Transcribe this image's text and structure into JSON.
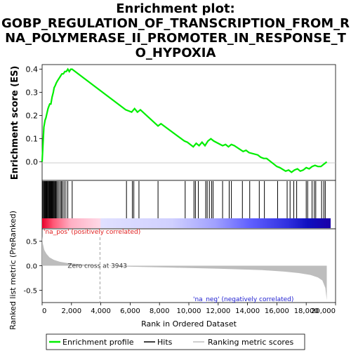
{
  "title_lines": [
    "Enrichment plot:",
    "GOBP_REGULATION_OF_TRANSCRIPTION_FROM_R",
    "NA_POLYMERASE_II_PROMOTER_IN_RESPONSE_T",
    "O_HYPOXIA"
  ],
  "colors": {
    "enrichment_line": "#00ee00",
    "hits": "#000000",
    "metric_fill": "#bdbdbd",
    "pos_label": "#e02020",
    "neg_label": "#2020d0",
    "zero_cross_line": "#a0a0a0"
  },
  "chart_data": {
    "type": "line",
    "xlabel": "Rank in Ordered Dataset",
    "xlim": [
      0,
      20000
    ],
    "x_ticks": [
      0,
      2000,
      4000,
      6000,
      8000,
      10000,
      12000,
      14000,
      16000,
      18000,
      20000
    ],
    "x_tick_labels": [
      "0",
      "2,000",
      "4,000",
      "6,000",
      "8,000",
      "10,000",
      "12,000",
      "14,000",
      "16,000",
      "18,000",
      "20,000"
    ],
    "dataset_size": 19400,
    "es_panel": {
      "ylabel": "Enrichment score (ES)",
      "ylim": [
        -0.08,
        0.42
      ],
      "y_ticks": [
        0.0,
        0.1,
        0.2,
        0.3,
        0.4
      ],
      "y_tick_labels": [
        "0.0",
        "0.1",
        "0.2",
        "0.3",
        "0.4"
      ],
      "series": [
        {
          "name": "Enrichment profile",
          "x": [
            0,
            60,
            120,
            200,
            260,
            330,
            400,
            460,
            520,
            600,
            680,
            760,
            820,
            900,
            960,
            1050,
            1150,
            1250,
            1350,
            1450,
            1550,
            1650,
            1750,
            1850,
            1950,
            2050,
            2150,
            5700,
            5900,
            6100,
            6300,
            6500,
            6700,
            7900,
            8100,
            9700,
            9900,
            10300,
            10500,
            10700,
            10900,
            11100,
            11300,
            11500,
            11700,
            12300,
            12500,
            12700,
            12900,
            13100,
            13700,
            13900,
            14100,
            14700,
            14900,
            15100,
            15300,
            16000,
            16200,
            16600,
            16800,
            17000,
            17200,
            17400,
            17600,
            17800,
            18000,
            18200,
            18400,
            18600,
            18800,
            19000,
            19200,
            19400
          ],
          "y": [
            0.0,
            0.08,
            0.15,
            0.18,
            0.19,
            0.21,
            0.23,
            0.24,
            0.25,
            0.25,
            0.28,
            0.3,
            0.32,
            0.33,
            0.34,
            0.35,
            0.36,
            0.37,
            0.38,
            0.38,
            0.39,
            0.39,
            0.4,
            0.39,
            0.4,
            0.4,
            0.395,
            0.225,
            0.22,
            0.215,
            0.23,
            0.215,
            0.225,
            0.155,
            0.165,
            0.09,
            0.085,
            0.065,
            0.08,
            0.07,
            0.085,
            0.07,
            0.09,
            0.1,
            0.09,
            0.07,
            0.075,
            0.065,
            0.075,
            0.07,
            0.045,
            0.05,
            0.04,
            0.03,
            0.02,
            0.015,
            0.015,
            -0.02,
            -0.025,
            -0.04,
            -0.035,
            -0.045,
            -0.035,
            -0.03,
            -0.04,
            -0.035,
            -0.025,
            -0.03,
            -0.02,
            -0.015,
            -0.02,
            -0.02,
            -0.01,
            0.0
          ]
        }
      ]
    },
    "hits": [
      20,
      80,
      130,
      170,
      210,
      250,
      290,
      330,
      370,
      420,
      460,
      500,
      540,
      580,
      620,
      660,
      700,
      740,
      780,
      830,
      880,
      930,
      990,
      1060,
      1150,
      1250,
      1320,
      1400,
      1500,
      1620,
      1750,
      2050,
      5750,
      6150,
      6250,
      6600,
      7900,
      9750,
      10350,
      10450,
      10650,
      11150,
      11250,
      11400,
      11550,
      11650,
      12300,
      12750,
      12900,
      13650,
      14150,
      14800,
      15150,
      16050,
      16700,
      16900,
      17150,
      17350,
      18000,
      18100,
      18400,
      18550,
      18650,
      19050,
      19200,
      19300
    ],
    "metric_panel": {
      "ylabel": "Ranked list metric (PreRanked)",
      "ylim": [
        -0.75,
        0.75
      ],
      "y_ticks": [
        -0.5,
        0.0,
        0.5
      ],
      "y_tick_labels": [
        "-0.5",
        "0.0",
        "0.5"
      ],
      "zero_cross_label": "Zero cross at 3943",
      "zero_cross": 3943,
      "pos_label": "'na_pos' (positively correlated)",
      "neg_label": "'na_neg' (negatively correlated)",
      "x": [
        0,
        50,
        150,
        300,
        500,
        800,
        1200,
        1800,
        2600,
        3400,
        3943,
        6000,
        9000,
        12000,
        15000,
        16500,
        17500,
        18300,
        18800,
        19100,
        19300,
        19400
      ],
      "values": [
        0.6,
        0.45,
        0.32,
        0.24,
        0.17,
        0.12,
        0.08,
        0.05,
        0.03,
        0.01,
        0.0,
        -0.02,
        -0.04,
        -0.06,
        -0.09,
        -0.12,
        -0.15,
        -0.19,
        -0.24,
        -0.3,
        -0.45,
        -0.7
      ]
    },
    "legend": {
      "placement": "bottom",
      "entries": [
        "Enrichment profile",
        "Hits",
        "Ranking metric scores"
      ]
    }
  }
}
